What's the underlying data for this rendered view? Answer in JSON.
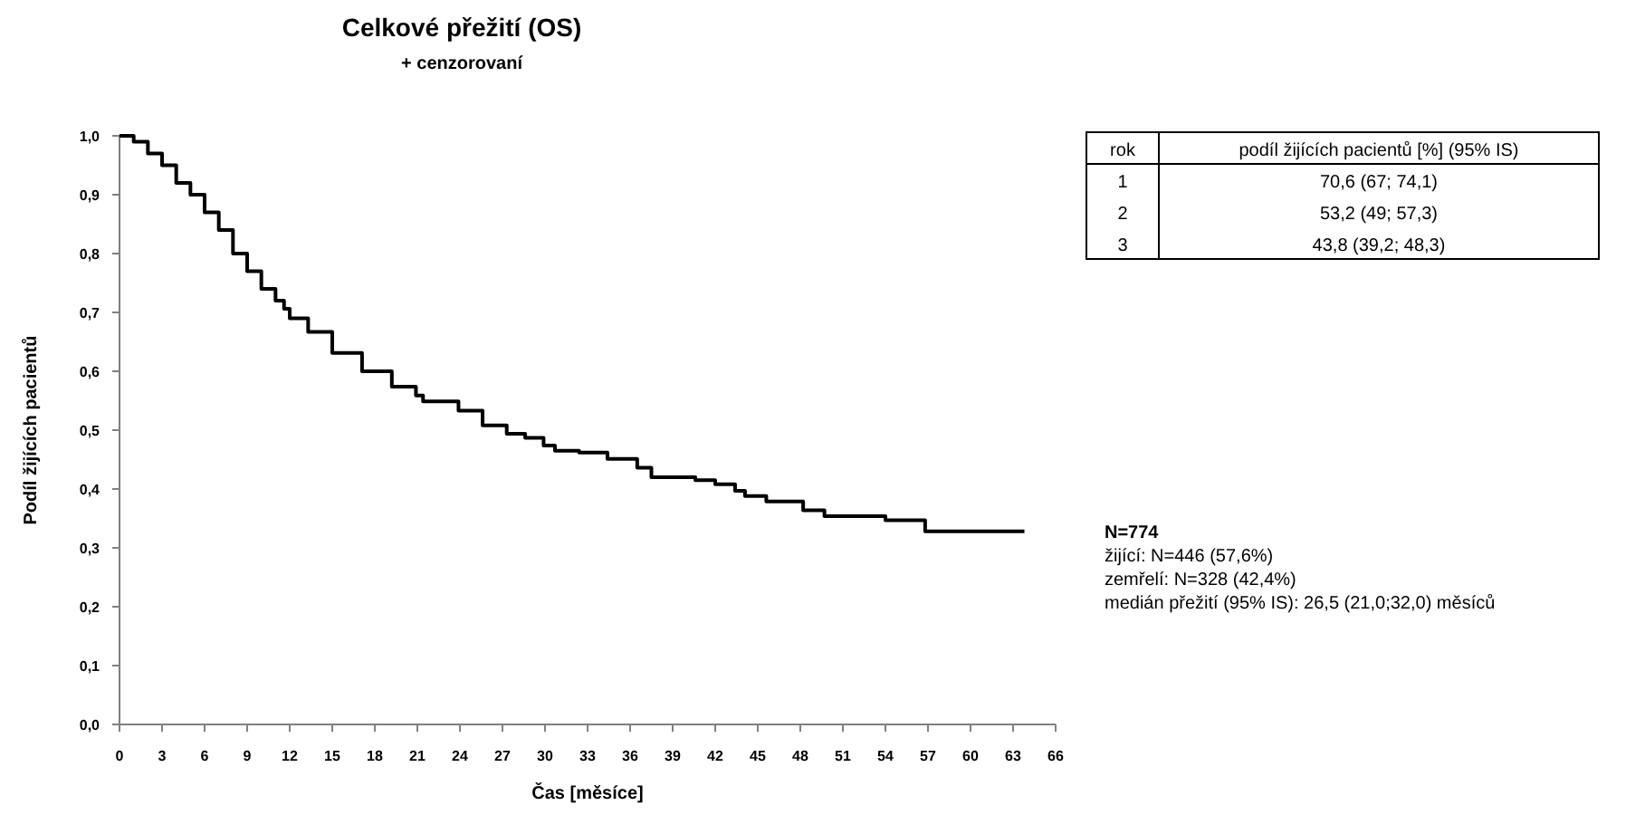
{
  "chart_data": {
    "type": "step",
    "title": "Celkové přežití (OS)",
    "subtitle": "+ cenzorovaní",
    "xlabel": "Čas [měsíce]",
    "ylabel": "Podíl žijících pacientů",
    "x": [
      0,
      1,
      2,
      3,
      4,
      5,
      6,
      7,
      8,
      9,
      10,
      11,
      11.6,
      12,
      13.3,
      15,
      17.1,
      19.2,
      20.9,
      21.4,
      23.9,
      25.6,
      27.3,
      28.6,
      29.9,
      30.7,
      32.4,
      34.4,
      36.5,
      37.5,
      40.6,
      42,
      43.4,
      44.1,
      45.6,
      48.2,
      49.7,
      54,
      56.8,
      63.8
    ],
    "values": [
      1.0,
      0.99,
      0.97,
      0.95,
      0.92,
      0.9,
      0.87,
      0.84,
      0.8,
      0.77,
      0.74,
      0.72,
      0.706,
      0.69,
      0.667,
      0.631,
      0.6,
      0.574,
      0.559,
      0.549,
      0.533,
      0.508,
      0.494,
      0.487,
      0.474,
      0.465,
      0.462,
      0.451,
      0.436,
      0.42,
      0.415,
      0.408,
      0.397,
      0.388,
      0.379,
      0.364,
      0.354,
      0.347,
      0.328,
      0.328
    ],
    "color": "#000000",
    "xlim": [
      0,
      66
    ],
    "xticks": [
      0,
      3,
      6,
      9,
      12,
      15,
      18,
      21,
      24,
      27,
      30,
      33,
      36,
      39,
      42,
      45,
      48,
      51,
      54,
      57,
      60,
      63,
      66
    ],
    "ylim": [
      0,
      1
    ],
    "yticks": [
      {
        "value": 0,
        "label": "0,0"
      },
      {
        "value": 0.1,
        "label": "0,1"
      },
      {
        "value": 0.2,
        "label": "0,2"
      },
      {
        "value": 0.3,
        "label": "0,3"
      },
      {
        "value": 0.4,
        "label": "0,4"
      },
      {
        "value": 0.5,
        "label": "0,5"
      },
      {
        "value": 0.6,
        "label": "0,6"
      },
      {
        "value": 0.7,
        "label": "0,7"
      },
      {
        "value": 0.8,
        "label": "0,8"
      },
      {
        "value": 0.9,
        "label": "0,9"
      },
      {
        "value": 1,
        "label": "1,0"
      }
    ],
    "grid": false,
    "legend": false,
    "annotations": [
      "rok",
      "podíl žijících pacientů [%] (95% IS)",
      "1",
      "70,6 (67; 74,1)",
      "2",
      "53,2 (49; 57,3)",
      "3",
      "43,8 (39,2; 48,3)",
      "N=774",
      "žijící: N=446 (57,6%)",
      "zemřelí: N=328 (42,4%)",
      "medián přežití (95% IS): 26,5 (21,0;32,0) měsíců"
    ]
  }
}
